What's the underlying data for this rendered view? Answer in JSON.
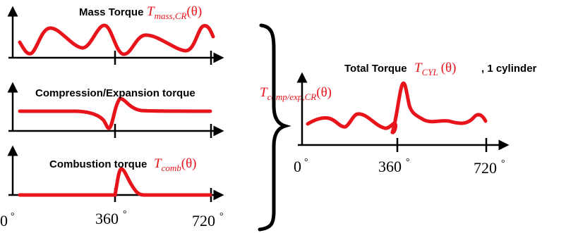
{
  "colors": {
    "curve": "#e8141b",
    "axis": "#000000",
    "math_text": "#e8141b"
  },
  "panels": {
    "mass": {
      "title": "Mass Torque",
      "symbol_base": "T",
      "symbol_sub": "mass,CR",
      "symbol_arg": "(θ)"
    },
    "compression": {
      "title": "Compression/Expansion torque",
      "symbol_base": "T",
      "symbol_sub": "comp/exp,CR",
      "symbol_arg": "(θ)"
    },
    "combustion": {
      "title": "Combustion torque",
      "symbol_base": "T",
      "symbol_sub": "comb",
      "symbol_arg": "(θ)"
    },
    "total": {
      "title": "Total Torque",
      "symbol_base": "T",
      "symbol_sub": "CYL",
      "symbol_arg": "(θ)",
      "suffix": ", 1 cylinder"
    }
  },
  "axis_ticks": {
    "left": [
      "0",
      "360",
      "720"
    ],
    "right": [
      "0",
      "360",
      "720"
    ],
    "degree": "°"
  }
}
